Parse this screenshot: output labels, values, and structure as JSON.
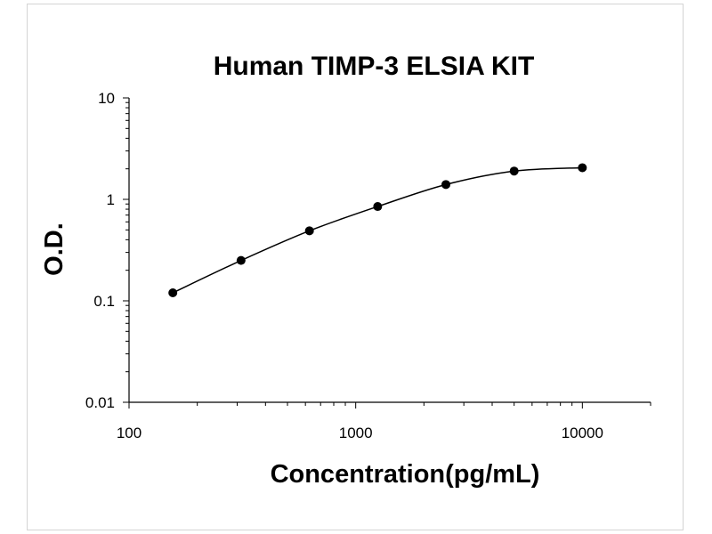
{
  "chart_data": {
    "type": "scatter",
    "title": "Human TIMP-3 ELSIA KIT",
    "xlabel": "Concentration(pg/mL)",
    "ylabel": "O.D.",
    "x_scale": "log",
    "y_scale": "log",
    "xlim": [
      100,
      20000
    ],
    "ylim": [
      0.01,
      10
    ],
    "x_ticks": [
      100,
      1000,
      10000
    ],
    "x_tick_labels": [
      "100",
      "1000",
      "10000"
    ],
    "y_ticks": [
      0.01,
      0.1,
      1,
      10
    ],
    "y_tick_labels": [
      "0.01",
      "0.1",
      "1",
      "10"
    ],
    "grid": false,
    "legend": "none",
    "series": [
      {
        "x": [
          156,
          312,
          625,
          1250,
          2500,
          5000,
          10000
        ],
        "y": [
          0.12,
          0.25,
          0.49,
          0.85,
          1.4,
          1.9,
          2.05
        ],
        "style": "markers-with-smooth-line",
        "color": "#000000"
      }
    ]
  }
}
